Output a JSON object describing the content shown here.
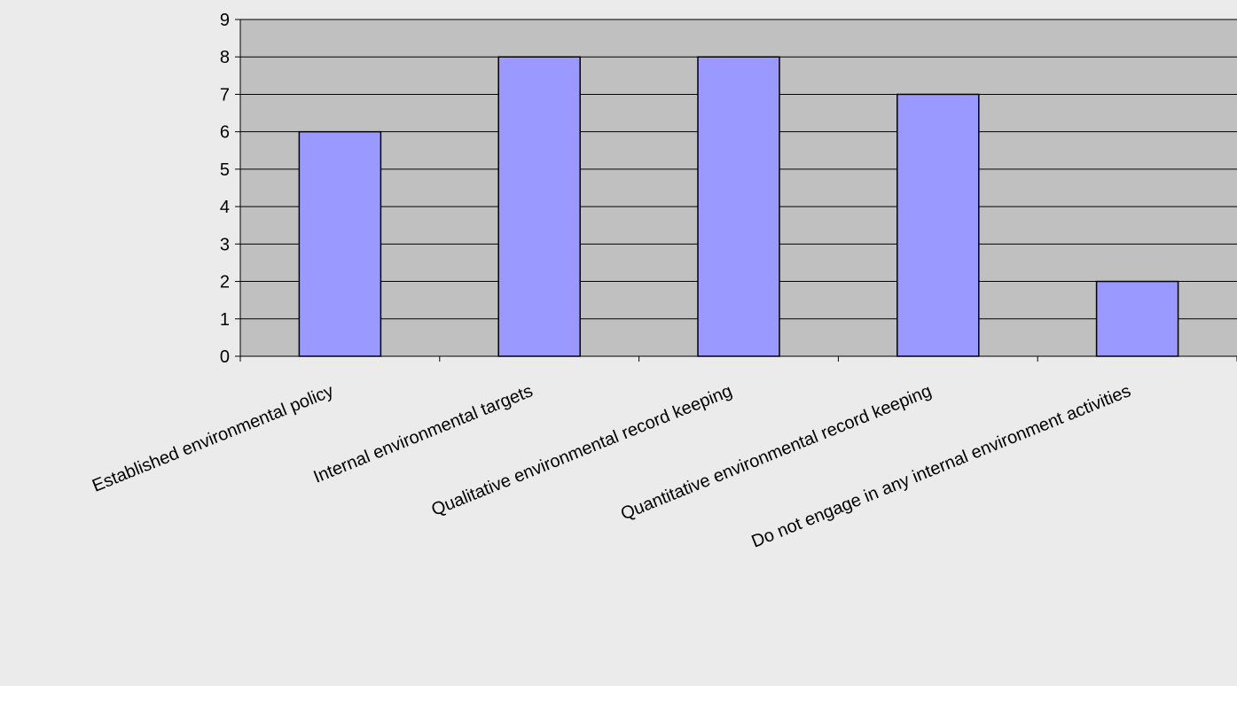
{
  "colors": {
    "chart_background": "#ebebeb",
    "plot_area": "#c0c0c0",
    "bar_fill": "#9999ff",
    "bar_stroke": "#000000",
    "gridline": "#000000"
  },
  "chart_data": {
    "type": "bar",
    "title": "",
    "xlabel": "",
    "ylabel": "",
    "categories": [
      "Established environmental policy",
      "Internal environmental targets",
      "Qualitative environmental record keeping",
      "Quantitative environmental record keeping",
      "Do not engage in any internal environment activities"
    ],
    "values": [
      6,
      8,
      8,
      7,
      2
    ],
    "ylim": [
      0,
      9
    ],
    "yticks": [
      0,
      1,
      2,
      3,
      4,
      5,
      6,
      7,
      8,
      9
    ],
    "grid": true,
    "legend": "none"
  }
}
